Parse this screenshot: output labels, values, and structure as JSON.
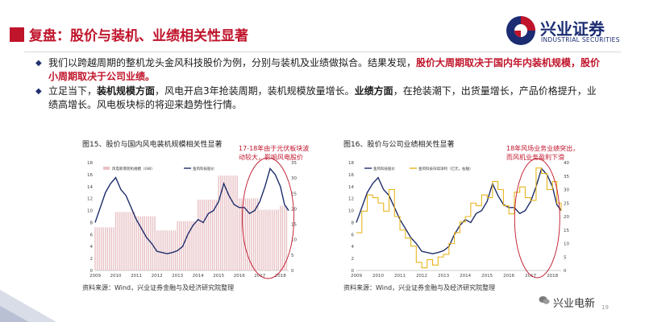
{
  "header": {
    "title": "复盘：股价与装机、业绩相关性显著",
    "logo_text": "兴业证券",
    "logo_sub": "INDUSTRIAL SECURITIES"
  },
  "bullets": [
    {
      "a": "我们以跨越周期的整机龙头金风科技股价为例，分别与装机及业绩做拟合。结果发现，",
      "b": "股价大周期取决于国内年内装机规模，股价小周期取决于公司业绩。",
      "c": ""
    },
    {
      "a": "立足当下，",
      "b": "装机规模方面",
      "c": "，风电开启3年抢装周期，装机规模放量增长。",
      "d": "业绩方面",
      "e": "，在抢装潮下，出货量增长，产品价格提升，业绩高增长。风电板块标的将迎来趋势性行情。"
    }
  ],
  "chart_data": [
    {
      "type": "line",
      "title": "图15、股价与国内风电装机规模相关性显著",
      "annotation": [
        "17-18年由于光伏板块波",
        "动较大，影响风电股价"
      ],
      "legend": [
        "风电新增装机规模（GW）",
        "金风科技股价"
      ],
      "x_ticks": [
        "2009",
        "2010",
        "2011",
        "2012",
        "2013",
        "2014",
        "2015",
        "2016",
        "2017",
        "2018"
      ],
      "y_left_ticks": [
        "0",
        "2",
        "4",
        "6",
        "8",
        "10",
        "12",
        "14",
        "16",
        "18"
      ],
      "y_right_ticks": [
        "0",
        "5",
        "10",
        "15",
        "20",
        "25",
        "30",
        "35"
      ],
      "y_left_range": [
        0,
        18
      ],
      "y_right_range": [
        0,
        35
      ],
      "bar_series": {
        "name": "风电新增装机规模（GW）",
        "x": [
          2009.0,
          2009.1,
          2009.2,
          2009.3,
          2009.4,
          2009.5,
          2009.6,
          2009.7,
          2009.8,
          2009.9,
          2010.0,
          2010.1,
          2010.2,
          2010.3,
          2010.4,
          2010.5,
          2010.6,
          2010.7,
          2010.8,
          2010.9,
          2011.0,
          2011.1,
          2011.2,
          2011.3,
          2011.4,
          2011.5,
          2011.6,
          2011.7,
          2011.8,
          2011.9,
          2012.0,
          2012.1,
          2012.2,
          2012.3,
          2012.4,
          2012.5,
          2012.6,
          2012.7,
          2012.8,
          2012.9,
          2013.0,
          2013.1,
          2013.2,
          2013.3,
          2013.4,
          2013.5,
          2013.6,
          2013.7,
          2013.8,
          2013.9,
          2014.0,
          2014.1,
          2014.2,
          2014.3,
          2014.4,
          2014.5,
          2014.6,
          2014.7,
          2014.8,
          2014.9,
          2015.0,
          2015.1,
          2015.2,
          2015.3,
          2015.4,
          2015.5,
          2015.6,
          2015.7,
          2015.8,
          2015.9,
          2016.0,
          2016.1,
          2016.2,
          2016.3,
          2016.4,
          2016.5,
          2016.6,
          2016.7,
          2016.8,
          2016.9,
          2017.0,
          2017.1,
          2017.2,
          2017.3,
          2017.4,
          2017.5,
          2017.6,
          2017.7,
          2017.8,
          2017.9,
          2018.0,
          2018.1,
          2018.2,
          2018.3
        ],
        "values": [
          14,
          14,
          14,
          14,
          14,
          14,
          14,
          14,
          14,
          14,
          19,
          19,
          19,
          19,
          19,
          19,
          19,
          19,
          19,
          19,
          17.6,
          17.6,
          17.6,
          17.6,
          17.6,
          17.6,
          17.6,
          17.6,
          17.6,
          17.6,
          13,
          13,
          13,
          13,
          13,
          13,
          13,
          13,
          13,
          13,
          16,
          16,
          16,
          16,
          16,
          16,
          16,
          16,
          16,
          16,
          23,
          23,
          23,
          23,
          23,
          23,
          23,
          23,
          23,
          23,
          30.8,
          30.8,
          30.8,
          30.8,
          30.8,
          30.8,
          30.8,
          30.8,
          30.8,
          30.8,
          23.4,
          23.4,
          23.4,
          23.4,
          23.4,
          23.4,
          23.4,
          23.4,
          23.4,
          23.4,
          19.7,
          19.7,
          19.7,
          19.7,
          19.7,
          19.7,
          19.7,
          19.7,
          19.7,
          19.7,
          21,
          21,
          21,
          21
        ]
      },
      "line_series": {
        "name": "金风科技股价",
        "x": [
          2009.0,
          2009.25,
          2009.5,
          2009.75,
          2010.0,
          2010.25,
          2010.5,
          2010.75,
          2011.0,
          2011.25,
          2011.5,
          2011.75,
          2012.0,
          2012.25,
          2012.5,
          2012.75,
          2013.0,
          2013.25,
          2013.5,
          2013.75,
          2014.0,
          2014.25,
          2014.5,
          2014.75,
          2015.0,
          2015.25,
          2015.5,
          2015.75,
          2016.0,
          2016.25,
          2016.5,
          2016.75,
          2017.0,
          2017.25,
          2017.5,
          2017.75,
          2018.0,
          2018.2,
          2018.4
        ],
        "values": [
          8,
          10.5,
          13,
          14.5,
          15.5,
          13.5,
          12.5,
          10.5,
          8.5,
          7,
          5.5,
          4.5,
          3.2,
          3,
          2.8,
          3,
          3.3,
          4,
          6,
          7.5,
          8.5,
          8,
          9.5,
          10,
          11.5,
          14.5,
          12.5,
          11,
          10.5,
          10.5,
          9.5,
          10,
          11.5,
          14,
          17,
          16,
          14,
          11,
          10
        ]
      }
    },
    {
      "type": "line",
      "title": "图16、股价与公司业绩相关性显著",
      "annotation": [
        "18年风场业务业绩突出，",
        "而风机业务盈利下滑"
      ],
      "legend": [
        "金风科技股价",
        "金风科技归母净利（亿元，右轴）"
      ],
      "x_ticks": [
        "2009",
        "2010",
        "2011",
        "2012",
        "2013",
        "2014",
        "2015",
        "2016",
        "2017",
        "2018"
      ],
      "y_left_ticks": [
        "0",
        "2",
        "4",
        "6",
        "8",
        "10",
        "12",
        "14",
        "16",
        "18"
      ],
      "y_right_ticks": [
        "0",
        "5",
        "10",
        "15",
        "20",
        "25",
        "30",
        "35",
        "40"
      ],
      "y_left_range": [
        0,
        18
      ],
      "y_right_range": [
        0,
        40
      ],
      "series": [
        {
          "name": "金风科技股价",
          "x": [
            2009.0,
            2009.25,
            2009.5,
            2009.75,
            2010.0,
            2010.25,
            2010.5,
            2010.75,
            2011.0,
            2011.25,
            2011.5,
            2011.75,
            2012.0,
            2012.25,
            2012.5,
            2012.75,
            2013.0,
            2013.25,
            2013.5,
            2013.75,
            2014.0,
            2014.25,
            2014.5,
            2014.75,
            2015.0,
            2015.25,
            2015.5,
            2015.75,
            2016.0,
            2016.25,
            2016.5,
            2016.75,
            2017.0,
            2017.25,
            2017.5,
            2017.75,
            2018.0,
            2018.2,
            2018.4
          ],
          "values": [
            8,
            10.5,
            13,
            14.5,
            15.5,
            13.5,
            12.5,
            10.5,
            8.5,
            7,
            5.5,
            4.5,
            3.2,
            3,
            2.8,
            3,
            3.3,
            4,
            6,
            7.5,
            8.5,
            8,
            9.5,
            10,
            11.5,
            14.5,
            12.5,
            11,
            10.5,
            10.5,
            9.5,
            10,
            11.5,
            14,
            17,
            16,
            14,
            11,
            10
          ]
        },
        {
          "name": "金风科技归母净利（亿元，右轴）",
          "x": [
            2009.0,
            2009.25,
            2009.5,
            2009.75,
            2010.0,
            2010.25,
            2010.5,
            2010.75,
            2011.0,
            2011.25,
            2011.5,
            2011.75,
            2012.0,
            2012.25,
            2012.5,
            2012.75,
            2013.0,
            2013.25,
            2013.5,
            2013.75,
            2014.0,
            2014.25,
            2014.5,
            2014.75,
            2015.0,
            2015.25,
            2015.5,
            2015.75,
            2016.0,
            2016.25,
            2016.5,
            2016.75,
            2017.0,
            2017.25,
            2017.5,
            2017.75,
            2018.0,
            2018.2,
            2018.4
          ],
          "values": [
            14,
            22,
            28,
            27,
            25,
            22,
            30,
            20,
            15,
            12,
            9,
            3,
            1,
            4,
            2,
            5,
            6,
            10,
            14,
            18,
            20,
            25,
            24,
            28,
            27,
            33,
            30,
            24,
            21,
            29,
            31,
            27,
            26,
            38,
            36,
            30,
            33,
            25,
            22
          ]
        }
      ]
    }
  ],
  "sources": {
    "left": "资料来源：Wind，兴业证券金融与及经济研究院整理",
    "right": "资料来源：Wind，兴业证券金融与及经济研究院整理"
  },
  "footer": {
    "brand": "兴业电新",
    "page": "19"
  },
  "colors": {
    "accent_red": "#c0142b",
    "navy": "#1f2f6e",
    "stock_line": "#1e2d6b",
    "capacity_bar": "#e8c2c6",
    "profit_line": "#e8b51e"
  }
}
